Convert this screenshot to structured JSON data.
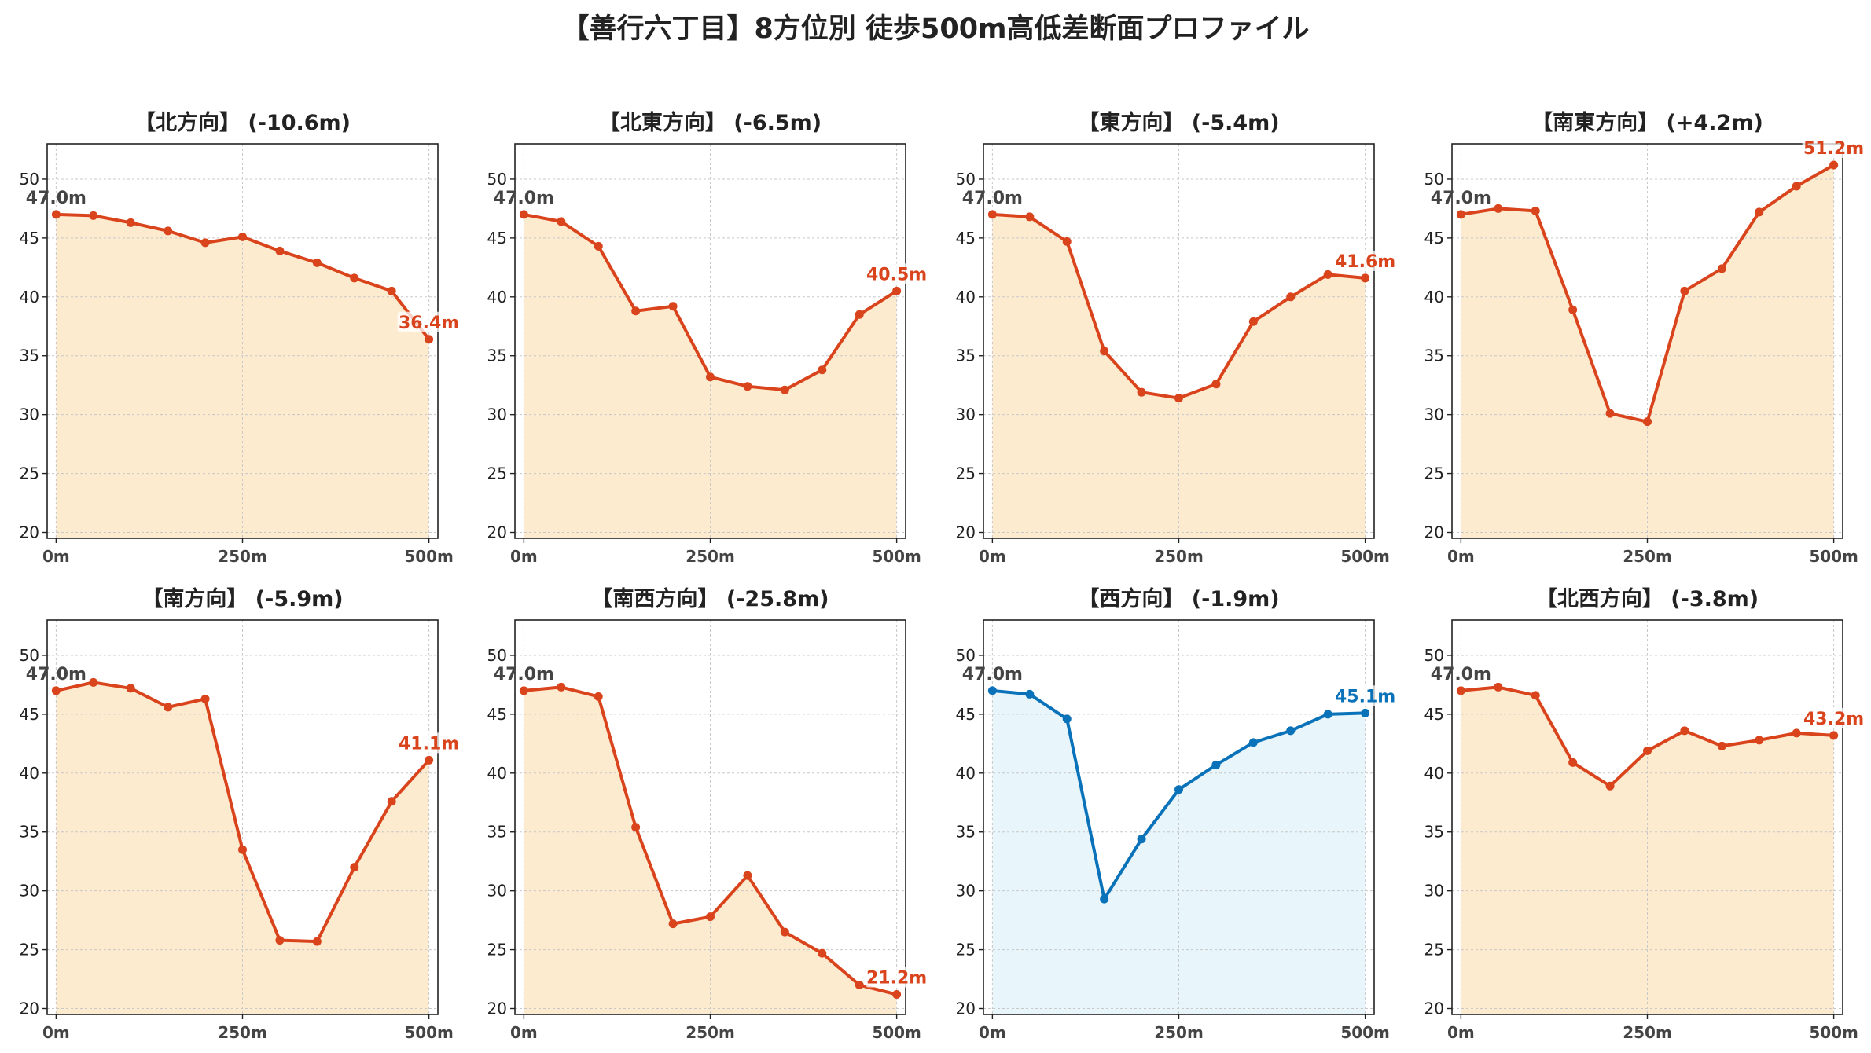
{
  "suptitle": "【善行六丁目】8方位別 徒歩500m高低差断面プロファイル",
  "colors": {
    "default_line": "#d9441c",
    "default_fill": "#fdebd0",
    "highlight_line": "#0a72b9",
    "highlight_fill": "#e8f5fb",
    "start_label": "#444444",
    "grid": "#c8c8c8",
    "axis": "#222222"
  },
  "chart_data": [
    {
      "type": "area",
      "title": "【北方向】 (-10.6m)",
      "x": [
        0,
        50,
        100,
        150,
        200,
        250,
        300,
        350,
        400,
        450,
        500
      ],
      "y": [
        47.0,
        46.9,
        46.3,
        45.6,
        44.6,
        45.1,
        43.9,
        42.9,
        41.6,
        40.5,
        36.4
      ],
      "start_label": "47.0m",
      "end_label": "36.4m",
      "highlight": false,
      "xticks": [
        "0m",
        "250m",
        "500m"
      ],
      "yticks": [
        20,
        25,
        30,
        35,
        40,
        45,
        50
      ],
      "ylim": [
        19.5,
        53
      ],
      "xlim": [
        -12,
        512
      ],
      "grid": true
    },
    {
      "type": "area",
      "title": "【北東方向】 (-6.5m)",
      "x": [
        0,
        50,
        100,
        150,
        200,
        250,
        300,
        350,
        400,
        450,
        500
      ],
      "y": [
        47.0,
        46.4,
        44.3,
        38.8,
        39.2,
        33.2,
        32.4,
        32.1,
        33.8,
        38.5,
        40.5
      ],
      "start_label": "47.0m",
      "end_label": "40.5m",
      "highlight": false,
      "xticks": [
        "0m",
        "250m",
        "500m"
      ],
      "yticks": [
        20,
        25,
        30,
        35,
        40,
        45,
        50
      ],
      "ylim": [
        19.5,
        53
      ],
      "xlim": [
        -12,
        512
      ],
      "grid": true
    },
    {
      "type": "area",
      "title": "【東方向】 (-5.4m)",
      "x": [
        0,
        50,
        100,
        150,
        200,
        250,
        300,
        350,
        400,
        450,
        500
      ],
      "y": [
        47.0,
        46.8,
        44.7,
        35.4,
        31.9,
        31.4,
        32.6,
        37.9,
        40.0,
        41.9,
        41.6
      ],
      "start_label": "47.0m",
      "end_label": "41.6m",
      "highlight": false,
      "xticks": [
        "0m",
        "250m",
        "500m"
      ],
      "yticks": [
        20,
        25,
        30,
        35,
        40,
        45,
        50
      ],
      "ylim": [
        19.5,
        53
      ],
      "xlim": [
        -12,
        512
      ],
      "grid": true
    },
    {
      "type": "area",
      "title": "【南東方向】 (+4.2m)",
      "x": [
        0,
        50,
        100,
        150,
        200,
        250,
        300,
        350,
        400,
        450,
        500
      ],
      "y": [
        47.0,
        47.5,
        47.3,
        38.9,
        30.1,
        29.4,
        40.5,
        42.4,
        47.2,
        49.4,
        51.2
      ],
      "start_label": "47.0m",
      "end_label": "51.2m",
      "highlight": false,
      "xticks": [
        "0m",
        "250m",
        "500m"
      ],
      "yticks": [
        20,
        25,
        30,
        35,
        40,
        45,
        50
      ],
      "ylim": [
        19.5,
        53
      ],
      "xlim": [
        -12,
        512
      ],
      "grid": true
    },
    {
      "type": "area",
      "title": "【南方向】 (-5.9m)",
      "x": [
        0,
        50,
        100,
        150,
        200,
        250,
        300,
        350,
        400,
        450,
        500
      ],
      "y": [
        47.0,
        47.7,
        47.2,
        45.6,
        46.3,
        33.5,
        25.8,
        25.7,
        32.0,
        37.6,
        41.1
      ],
      "start_label": "47.0m",
      "end_label": "41.1m",
      "highlight": false,
      "xticks": [
        "0m",
        "250m",
        "500m"
      ],
      "yticks": [
        20,
        25,
        30,
        35,
        40,
        45,
        50
      ],
      "ylim": [
        19.5,
        53
      ],
      "xlim": [
        -12,
        512
      ],
      "grid": true
    },
    {
      "type": "area",
      "title": "【南西方向】 (-25.8m)",
      "x": [
        0,
        50,
        100,
        150,
        200,
        250,
        300,
        350,
        400,
        450,
        500
      ],
      "y": [
        47.0,
        47.3,
        46.5,
        35.4,
        27.2,
        27.8,
        31.3,
        26.5,
        24.7,
        22.0,
        21.2
      ],
      "start_label": "47.0m",
      "end_label": "21.2m",
      "highlight": false,
      "xticks": [
        "0m",
        "250m",
        "500m"
      ],
      "yticks": [
        20,
        25,
        30,
        35,
        40,
        45,
        50
      ],
      "ylim": [
        19.5,
        53
      ],
      "xlim": [
        -12,
        512
      ],
      "grid": true
    },
    {
      "type": "area",
      "title": "【西方向】 (-1.9m)",
      "x": [
        0,
        50,
        100,
        150,
        200,
        250,
        300,
        350,
        400,
        450,
        500
      ],
      "y": [
        47.0,
        46.7,
        44.6,
        29.3,
        34.4,
        38.6,
        40.7,
        42.6,
        43.6,
        45.0,
        45.1
      ],
      "start_label": "47.0m",
      "end_label": "45.1m",
      "highlight": true,
      "xticks": [
        "0m",
        "250m",
        "500m"
      ],
      "yticks": [
        20,
        25,
        30,
        35,
        40,
        45,
        50
      ],
      "ylim": [
        19.5,
        53
      ],
      "xlim": [
        -12,
        512
      ],
      "grid": true
    },
    {
      "type": "area",
      "title": "【北西方向】 (-3.8m)",
      "x": [
        0,
        50,
        100,
        150,
        200,
        250,
        300,
        350,
        400,
        450,
        500
      ],
      "y": [
        47.0,
        47.3,
        46.6,
        40.9,
        38.9,
        41.9,
        43.6,
        42.3,
        42.8,
        43.4,
        43.2
      ],
      "start_label": "47.0m",
      "end_label": "43.2m",
      "highlight": false,
      "xticks": [
        "0m",
        "250m",
        "500m"
      ],
      "yticks": [
        20,
        25,
        30,
        35,
        40,
        45,
        50
      ],
      "ylim": [
        19.5,
        53
      ],
      "xlim": [
        -12,
        512
      ],
      "grid": true
    }
  ]
}
